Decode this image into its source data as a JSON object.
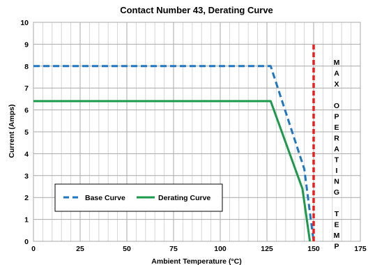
{
  "chart_data": {
    "type": "line",
    "title": "Contact Number 43, Derating Curve",
    "xlabel": "Ambient Temperature (°C)",
    "ylabel": "Current (Amps)",
    "xlim": [
      0,
      175
    ],
    "ylim": [
      0,
      10
    ],
    "xticks": [
      0,
      25,
      50,
      75,
      100,
      125,
      150,
      175
    ],
    "yticks": [
      0,
      1,
      2,
      3,
      4,
      5,
      6,
      7,
      8,
      9,
      10
    ],
    "grid": true,
    "legend_position": "lower-left",
    "series": [
      {
        "name": "Base Curve",
        "color": "#1f77c4",
        "style": "dashed",
        "points": [
          [
            0,
            8.0
          ],
          [
            127,
            8.0
          ],
          [
            145,
            3.3
          ],
          [
            150,
            0
          ]
        ]
      },
      {
        "name": "Derating Curve",
        "color": "#1a9a4a",
        "style": "solid",
        "points": [
          [
            0,
            6.4
          ],
          [
            127,
            6.4
          ],
          [
            144,
            2.4
          ],
          [
            148,
            0
          ]
        ]
      }
    ],
    "reference_line": {
      "x": 150,
      "y_range": [
        0,
        9
      ],
      "color": "#e8201e",
      "style": "dashed"
    },
    "annotation": {
      "text_lines": [
        "M",
        "A",
        "X",
        "",
        "O",
        "P",
        "E",
        "R",
        "A",
        "T",
        "I",
        "N",
        "G",
        "",
        "T",
        "E",
        "M",
        "P"
      ]
    }
  }
}
